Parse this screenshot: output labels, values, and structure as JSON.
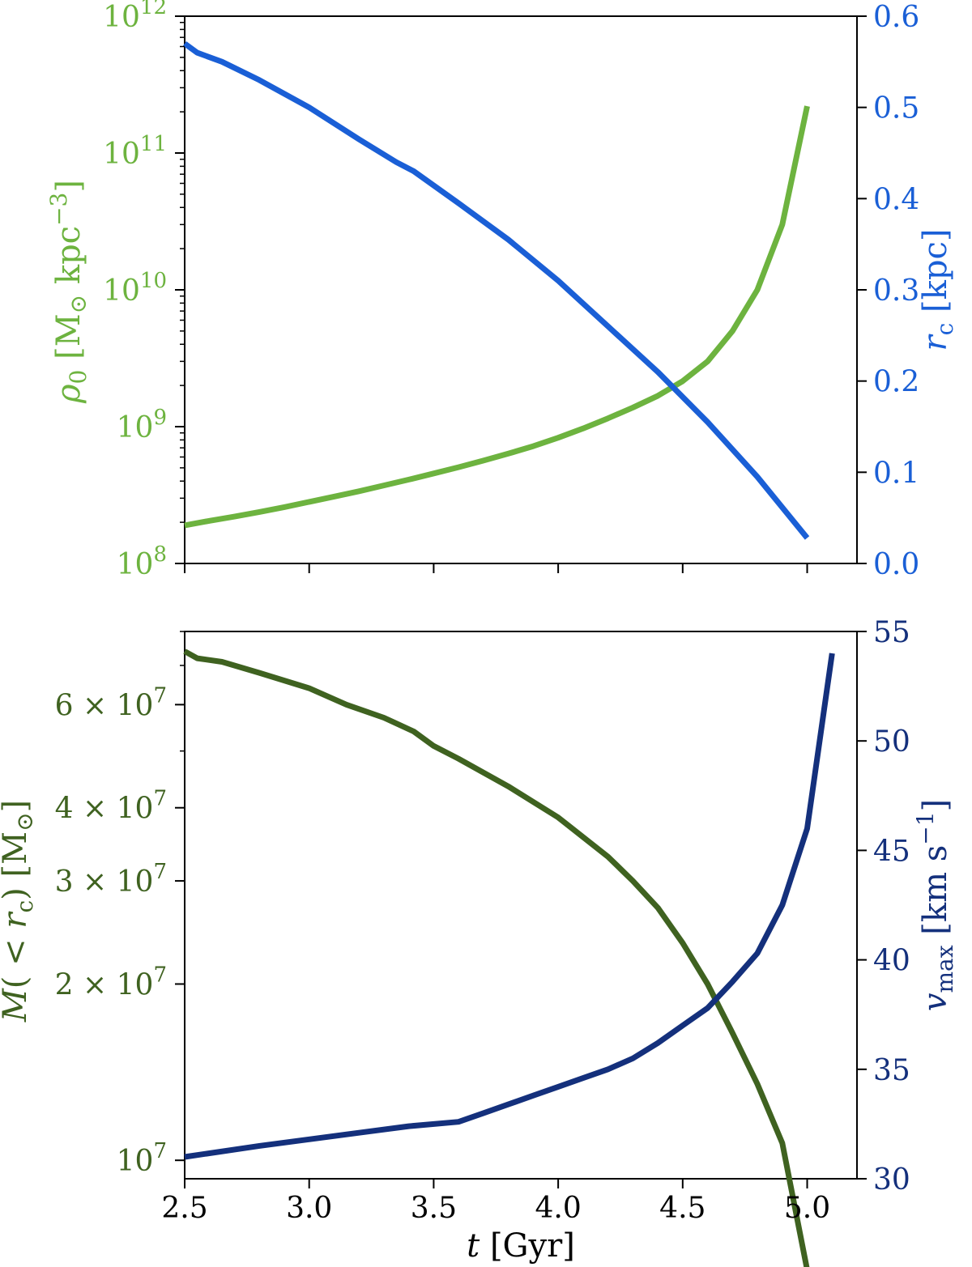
{
  "chart_data": [
    {
      "type": "line",
      "panel": "top",
      "x_ticks": [
        "2.5",
        "3.0",
        "3.5",
        "4.0",
        "4.5",
        "5.0"
      ],
      "xlim": [
        2.5,
        5.2
      ],
      "left_axis": {
        "label_html": "ρ0 [M⊙ kpc−3]",
        "label_prefix": "ρ",
        "label_sub": "0",
        "label_unit_open": " [M",
        "label_unit_sun": "⊙",
        "label_unit_mid": " kpc",
        "label_unit_exp": "−3",
        "label_unit_close": "]",
        "scale": "log",
        "ylim": [
          100000000,
          1000000000000
        ],
        "tick_base": "10",
        "tick_exps": [
          "8",
          "9",
          "10",
          "11",
          "12"
        ],
        "color": "#6db33f"
      },
      "right_axis": {
        "label_italic": "r",
        "label_sub": "c",
        "label_unit": " [kpc]",
        "scale": "linear",
        "ylim": [
          0.0,
          0.6
        ],
        "ticks": [
          "0.0",
          "0.1",
          "0.2",
          "0.3",
          "0.4",
          "0.5",
          "0.6"
        ],
        "color": "#1a5fd6"
      },
      "series": [
        {
          "axis": "left",
          "color": "#6db33f",
          "x": [
            2.5,
            2.6,
            2.7,
            2.8,
            2.9,
            3.0,
            3.1,
            3.2,
            3.3,
            3.4,
            3.5,
            3.6,
            3.7,
            3.8,
            3.9,
            4.0,
            4.1,
            4.2,
            4.3,
            4.4,
            4.5,
            4.6,
            4.7,
            4.8,
            4.9,
            5.0
          ],
          "y": [
            190000000,
            205000000,
            220000000,
            238000000,
            258000000,
            282000000,
            308000000,
            337000000,
            372000000,
            410000000,
            455000000,
            505000000,
            565000000,
            635000000,
            720000000,
            830000000,
            970000000,
            1150000000,
            1380000000,
            1680000000,
            2150000000,
            3000000000,
            5000000000,
            10000000000,
            30000000000,
            220000000000
          ]
        },
        {
          "axis": "right",
          "color": "#1a5fd6",
          "x": [
            2.5,
            2.55,
            2.65,
            2.8,
            3.0,
            3.2,
            3.35,
            3.42,
            3.6,
            3.8,
            4.0,
            4.2,
            4.4,
            4.6,
            4.8,
            5.0
          ],
          "y": [
            0.57,
            0.56,
            0.55,
            0.53,
            0.5,
            0.465,
            0.44,
            0.43,
            0.395,
            0.355,
            0.31,
            0.26,
            0.21,
            0.155,
            0.095,
            0.028
          ]
        }
      ]
    },
    {
      "type": "line",
      "panel": "bottom",
      "xlabel_italic": "t",
      "xlabel_unit": " [Gyr]",
      "x_ticks": [
        "2.5",
        "3.0",
        "3.5",
        "4.0",
        "4.5",
        "5.0"
      ],
      "xlim": [
        2.5,
        5.2
      ],
      "left_axis": {
        "label_italic": "M",
        "label_mid": "( < ",
        "label_r": "r",
        "label_sub": "c",
        "label_close": ") [M",
        "label_sun": "⊙",
        "label_end": "]",
        "scale": "log",
        "ylim": [
          9300000,
          80000000
        ],
        "ticks": [
          {
            "value": 10000000,
            "mantissa": "",
            "base": "10",
            "exp": "7"
          },
          {
            "value": 20000000,
            "mantissa": "2 × ",
            "base": "10",
            "exp": "7"
          },
          {
            "value": 30000000,
            "mantissa": "3 × ",
            "base": "10",
            "exp": "7"
          },
          {
            "value": 40000000,
            "mantissa": "4 × ",
            "base": "10",
            "exp": "7"
          },
          {
            "value": 60000000,
            "mantissa": "6 × ",
            "base": "10",
            "exp": "7"
          }
        ],
        "color": "#3f6220"
      },
      "right_axis": {
        "label_italic": "v",
        "label_sub": "max",
        "label_unit": " [km s",
        "label_exp": "−1",
        "label_close": "]",
        "scale": "linear",
        "ylim": [
          30,
          55
        ],
        "ticks": [
          "30",
          "35",
          "40",
          "45",
          "50",
          "55"
        ],
        "color": "#14307c"
      },
      "series": [
        {
          "axis": "left",
          "color": "#3f6220",
          "x": [
            2.5,
            2.55,
            2.65,
            2.8,
            3.0,
            3.15,
            3.3,
            3.42,
            3.5,
            3.6,
            3.8,
            4.0,
            4.2,
            4.3,
            4.4,
            4.5,
            4.6,
            4.7,
            4.8,
            4.9,
            5.0
          ],
          "y": [
            74000000,
            72000000,
            71000000,
            68000000,
            64000000,
            60000000,
            57000000,
            54000000,
            51000000,
            48500000,
            43500000,
            38500000,
            33000000,
            30000000,
            27000000,
            23500000,
            20000000,
            16500000,
            13500000,
            10700000,
            6500000
          ]
        },
        {
          "axis": "right",
          "color": "#14307c",
          "x": [
            2.5,
            2.8,
            3.0,
            3.2,
            3.4,
            3.6,
            3.7,
            3.8,
            3.9,
            4.0,
            4.1,
            4.2,
            4.3,
            4.4,
            4.5,
            4.6,
            4.7,
            4.8,
            4.9,
            5.0,
            5.1
          ],
          "y": [
            31.0,
            31.5,
            31.8,
            32.1,
            32.4,
            32.6,
            33.0,
            33.4,
            33.8,
            34.2,
            34.6,
            35.0,
            35.5,
            36.2,
            37.0,
            37.8,
            39.0,
            40.3,
            42.5,
            46.0,
            54.0
          ]
        }
      ]
    }
  ]
}
